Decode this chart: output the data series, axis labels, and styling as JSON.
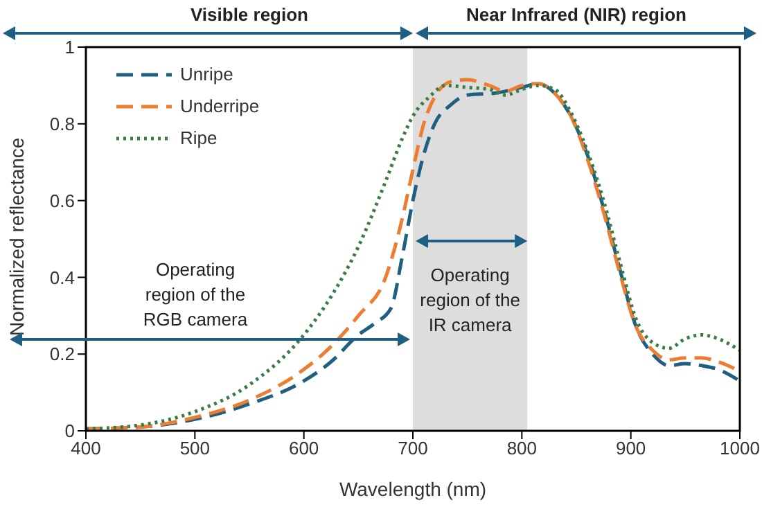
{
  "chart_data": {
    "type": "line",
    "xlabel": "Wavelength (nm)",
    "ylabel": "Normalized reflectance",
    "annotations": [
      "Visible region",
      "Near Infrared (NIR) region",
      "Operating region of the RGB camera",
      "Operating region of the IR camera"
    ],
    "series": [
      {
        "name": "Unripe",
        "color": "#1f5f82",
        "line_style": "dashed",
        "x": [
          400,
          450,
          500,
          550,
          600,
          625,
          650,
          665,
          680,
          690,
          700,
          710,
          720,
          735,
          750,
          775,
          800,
          815,
          830,
          845,
          860,
          875,
          890,
          905,
          920,
          935,
          950,
          965,
          980,
          1000
        ],
        "values": [
          0.005,
          0.01,
          0.03,
          0.07,
          0.13,
          0.18,
          0.25,
          0.28,
          0.32,
          0.45,
          0.6,
          0.72,
          0.8,
          0.85,
          0.875,
          0.88,
          0.895,
          0.905,
          0.88,
          0.82,
          0.72,
          0.58,
          0.42,
          0.27,
          0.2,
          0.17,
          0.175,
          0.17,
          0.16,
          0.13
        ]
      },
      {
        "name": "Underripe",
        "color": "#ed7d31",
        "line_style": "dashed",
        "x": [
          400,
          450,
          500,
          550,
          600,
          625,
          650,
          675,
          690,
          700,
          710,
          720,
          735,
          750,
          770,
          785,
          800,
          815,
          830,
          845,
          860,
          875,
          890,
          905,
          920,
          935,
          950,
          965,
          980,
          1000
        ],
        "values": [
          0.005,
          0.01,
          0.035,
          0.08,
          0.16,
          0.22,
          0.3,
          0.4,
          0.55,
          0.68,
          0.8,
          0.87,
          0.91,
          0.915,
          0.9,
          0.885,
          0.9,
          0.905,
          0.88,
          0.82,
          0.71,
          0.57,
          0.41,
          0.27,
          0.21,
          0.185,
          0.19,
          0.19,
          0.18,
          0.155
        ]
      },
      {
        "name": "Ripe",
        "color": "#3a7d44",
        "line_style": "dotted",
        "x": [
          400,
          450,
          500,
          550,
          600,
          625,
          650,
          675,
          690,
          700,
          715,
          730,
          750,
          770,
          785,
          800,
          815,
          830,
          845,
          860,
          875,
          890,
          905,
          920,
          935,
          950,
          965,
          980,
          1000
        ],
        "values": [
          0.005,
          0.015,
          0.05,
          0.12,
          0.25,
          0.35,
          0.48,
          0.65,
          0.76,
          0.82,
          0.87,
          0.9,
          0.895,
          0.89,
          0.875,
          0.89,
          0.9,
          0.89,
          0.83,
          0.73,
          0.6,
          0.44,
          0.29,
          0.23,
          0.215,
          0.24,
          0.25,
          0.24,
          0.21
        ]
      }
    ],
    "xlim": [
      400,
      1000
    ],
    "xticks": [
      400,
      500,
      600,
      700,
      800,
      900,
      1000
    ],
    "ylim": [
      0,
      1
    ],
    "yticks": [
      0,
      0.2,
      0.4,
      0.6,
      0.8,
      1
    ],
    "bands": [
      {
        "axis": "x",
        "from": 700,
        "to": 805,
        "color": "#dddddd"
      }
    ],
    "legend": "top left",
    "grid": false,
    "marker": "none"
  }
}
